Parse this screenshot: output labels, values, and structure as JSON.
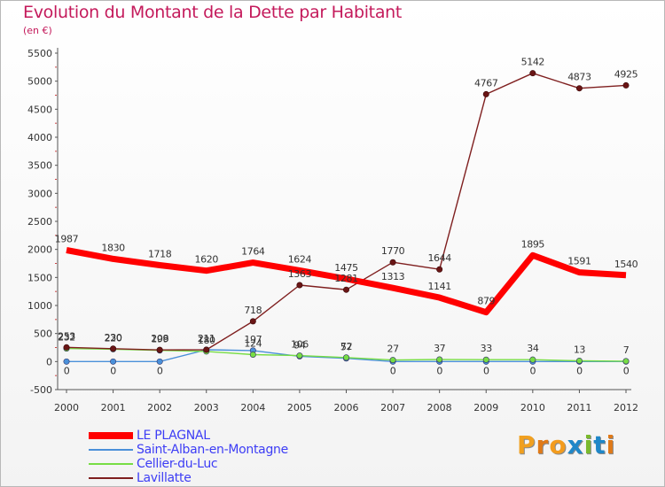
{
  "title": "Evolution du Montant de la Dette par Habitant",
  "subtitle": "(en €)",
  "brand": {
    "letters": [
      "P",
      "r",
      "o",
      "x",
      "i",
      "t",
      "i"
    ],
    "colors": [
      "#f0a020",
      "#e07a18",
      "#f39c1e",
      "#1f87c8",
      "#7ab92d",
      "#1f87c8",
      "#e07a18"
    ]
  },
  "chart_data": {
    "type": "line",
    "title": "Evolution du Montant de la Dette par Habitant",
    "subtitle": "(en €)",
    "x": [
      "2000",
      "2001",
      "2002",
      "2003",
      "2004",
      "2005",
      "2006",
      "2007",
      "2008",
      "2009",
      "2010",
      "2011",
      "2012"
    ],
    "ylim": [
      -500,
      5500
    ],
    "yticks": [
      -500,
      0,
      500,
      1000,
      1500,
      2000,
      2500,
      3000,
      3500,
      4000,
      4500,
      5000,
      5500
    ],
    "grid": false,
    "legend_position": "bottom-left",
    "series": [
      {
        "name": "LE PLAGNAL",
        "color": "#ff0000",
        "values": [
          1987,
          1830,
          1718,
          1620,
          1764,
          1624,
          1475,
          1313,
          1141,
          879,
          1895,
          1591,
          1540
        ]
      },
      {
        "name": "Saint-Alban-en-Montagne",
        "color": "#4a90d9",
        "values": [
          0,
          0,
          0,
          211,
          197,
          94,
          57,
          0,
          0,
          0,
          0,
          0,
          0
        ]
      },
      {
        "name": "Cellier-du-Luc",
        "color": "#77dd44",
        "values": [
          232,
          220,
          199,
          180,
          124,
          106,
          72,
          27,
          37,
          33,
          34,
          13,
          7
        ]
      },
      {
        "name": "Lavillatte",
        "color": "#7f1f1f",
        "values": [
          253,
          230,
          208,
          211,
          718,
          1363,
          1281,
          1770,
          1644,
          4767,
          5142,
          4873,
          4925
        ]
      }
    ]
  }
}
